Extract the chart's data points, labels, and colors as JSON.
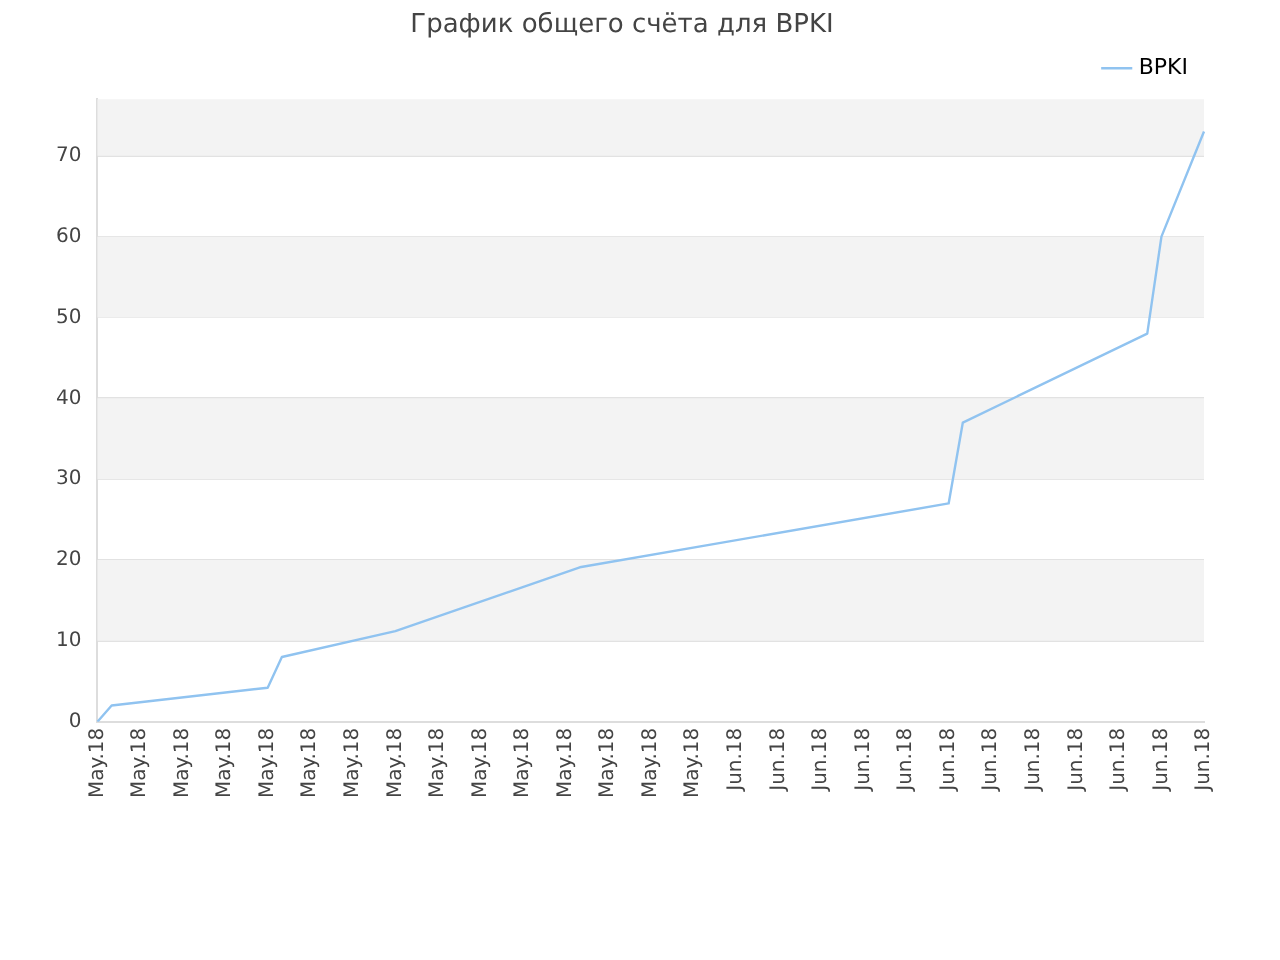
{
  "chart_data": {
    "type": "line",
    "title": "График общего счёта для BPKI",
    "categories": [
      "May.18",
      null,
      null,
      "May.18",
      null,
      null,
      "May.18",
      null,
      null,
      "May.18",
      null,
      null,
      "May.18",
      null,
      null,
      "May.18",
      null,
      null,
      "May.18",
      null,
      null,
      "May.18",
      null,
      null,
      "May.18",
      null,
      null,
      "May.18",
      null,
      null,
      "May.18",
      null,
      null,
      "May.18",
      null,
      null,
      "May.18",
      null,
      null,
      "May.18",
      null,
      null,
      "May.18",
      null,
      null,
      "Jun.18",
      null,
      null,
      "Jun.18",
      null,
      null,
      "Jun.18",
      null,
      null,
      "Jun.18",
      null,
      null,
      "Jun.18",
      null,
      null,
      "Jun.18",
      null,
      null,
      "Jun.18",
      null,
      null,
      "Jun.18",
      null,
      null,
      "Jun.18",
      null,
      null,
      "Jun.18",
      null,
      null,
      "Jun.18",
      null,
      null,
      "Jun.18"
    ],
    "series": [
      {
        "name": "BPKI",
        "color": "#90c3f0",
        "values": [
          0,
          2,
          null,
          null,
          null,
          null,
          null,
          null,
          null,
          null,
          null,
          null,
          4.2,
          8,
          null,
          null,
          null,
          null,
          null,
          null,
          null,
          11.2,
          null,
          null,
          null,
          null,
          null,
          null,
          null,
          null,
          null,
          null,
          null,
          null,
          19.1,
          null,
          null,
          null,
          null,
          null,
          null,
          null,
          null,
          null,
          null,
          null,
          null,
          null,
          null,
          null,
          null,
          null,
          null,
          null,
          null,
          null,
          null,
          null,
          null,
          null,
          27,
          37,
          null,
          null,
          null,
          null,
          null,
          null,
          null,
          null,
          null,
          null,
          null,
          null,
          48,
          60,
          null,
          null,
          73
        ]
      }
    ],
    "ylim": [
      0,
      77
    ],
    "yticks": [
      0,
      10,
      20,
      30,
      40,
      50,
      60,
      70
    ],
    "grid": "y",
    "legend": "top right",
    "marker": "none",
    "line_style": "solid"
  }
}
